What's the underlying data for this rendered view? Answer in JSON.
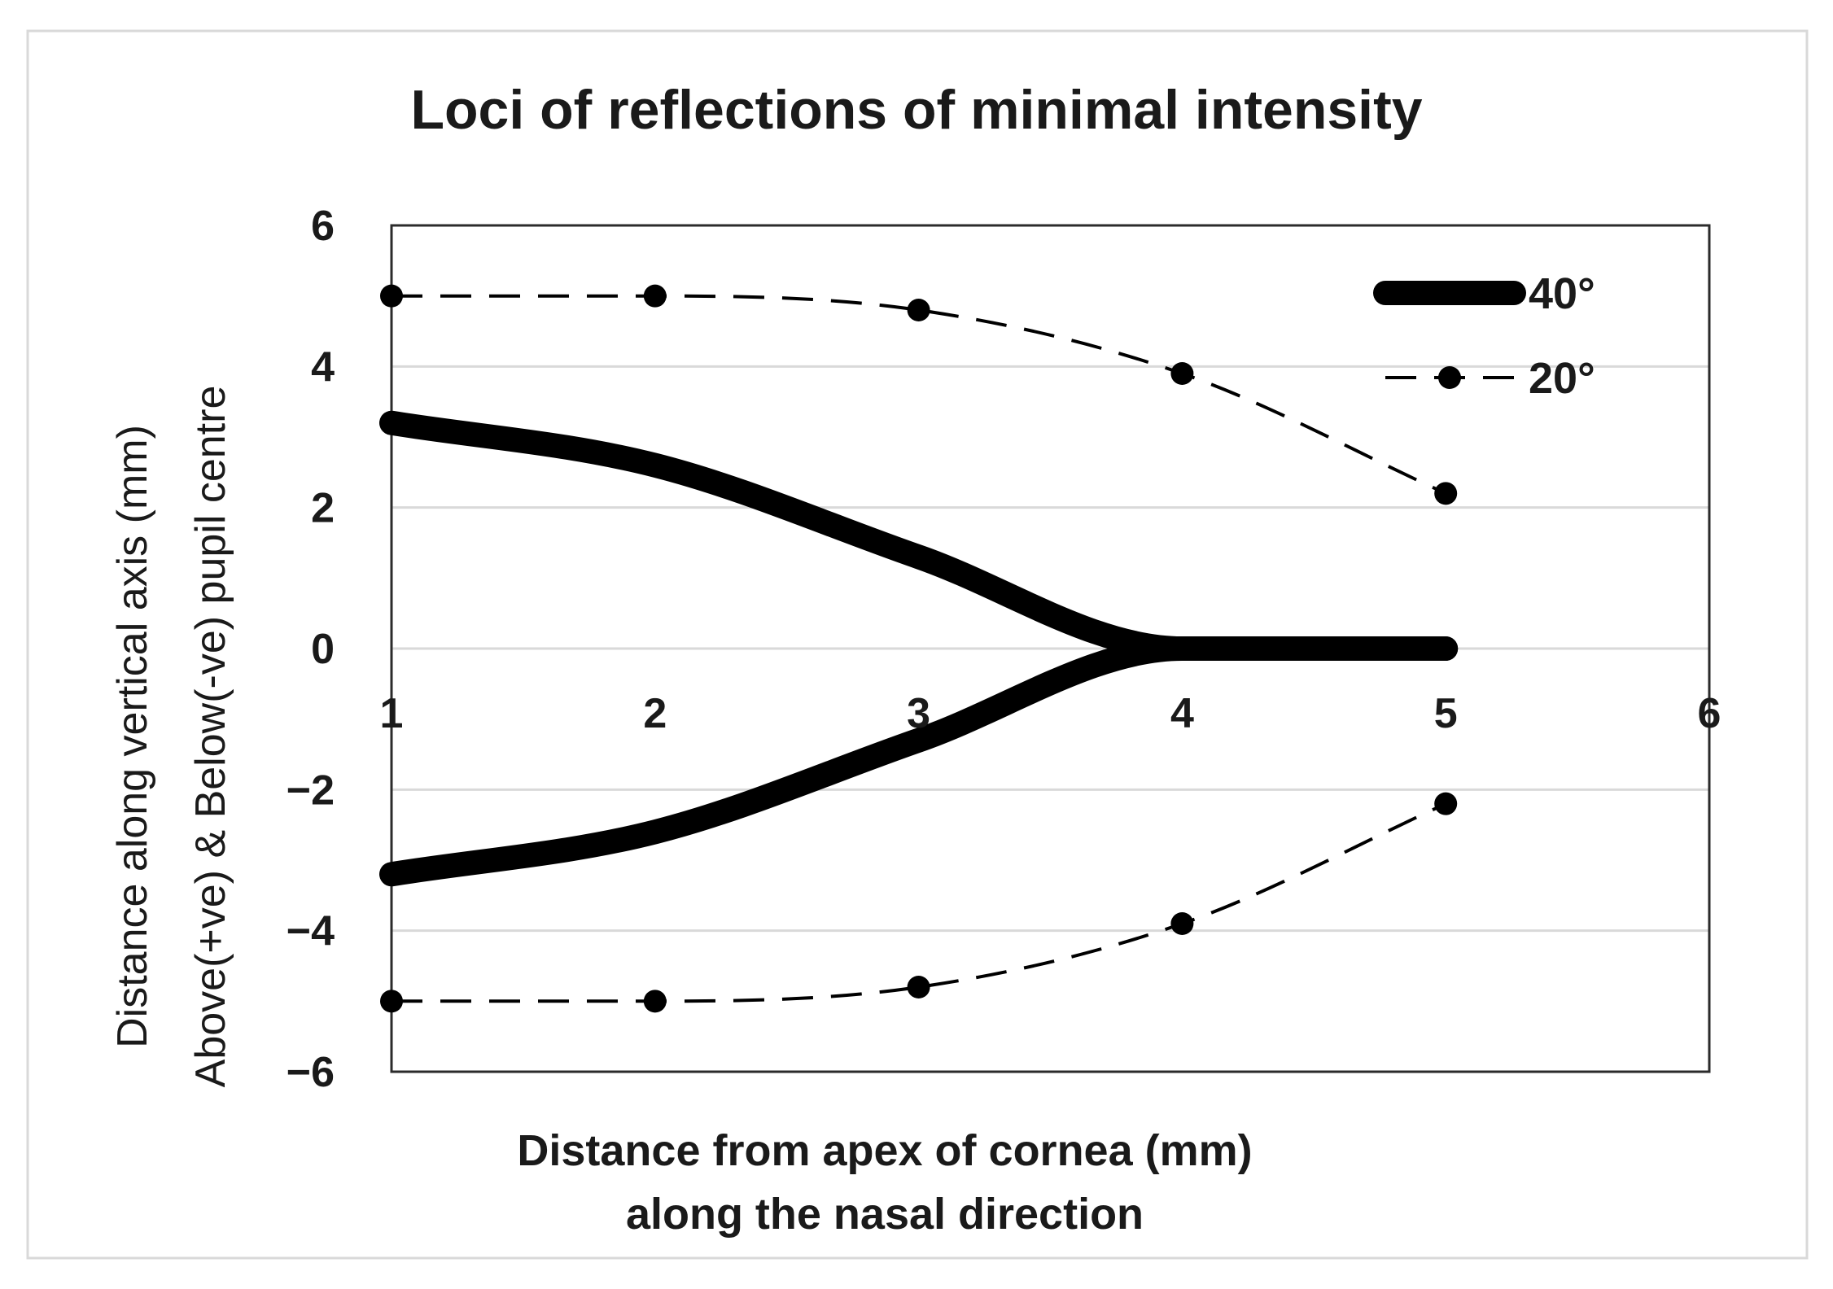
{
  "chart_data": {
    "type": "line",
    "title": "Loci of reflections of minimal intensity",
    "xlabel": [
      "Distance from apex of cornea (mm)",
      "along the nasal direction"
    ],
    "ylabel": [
      "Distance along vertical axis (mm)",
      "Above(+ve) & Below(-ve) pupil centre"
    ],
    "xlim": [
      1,
      6
    ],
    "ylim": [
      -6,
      6
    ],
    "x_ticks": [
      1,
      2,
      3,
      4,
      5,
      6
    ],
    "x_tick_labels": [
      "1",
      "2",
      "3",
      "4",
      "5",
      "6"
    ],
    "y_ticks": [
      6,
      4,
      2,
      0,
      -2,
      -4,
      -6
    ],
    "y_tick_labels": [
      "6",
      "4",
      "2",
      "0",
      "−2",
      "−4",
      "−6"
    ],
    "grid": "horizontal",
    "legend_position": "top-right",
    "series": [
      {
        "name": "40°",
        "style": "thick-solid",
        "color": "#000000",
        "branches": [
          {
            "x": [
              1,
              2,
              3,
              4,
              4.4,
              5
            ],
            "y": [
              3.2,
              2.6,
              1.3,
              0.0,
              0.0,
              0.0
            ]
          },
          {
            "x": [
              1,
              2,
              3,
              4,
              4.4,
              5
            ],
            "y": [
              -3.2,
              -2.6,
              -1.3,
              0.0,
              0.0,
              0.0
            ]
          }
        ]
      },
      {
        "name": "20°",
        "style": "dashed-markers",
        "color": "#000000",
        "branches": [
          {
            "x": [
              1,
              2,
              3,
              4,
              5
            ],
            "y": [
              5.0,
              5.0,
              4.8,
              3.9,
              2.2
            ]
          },
          {
            "x": [
              1,
              2,
              3,
              4,
              5
            ],
            "y": [
              -5.0,
              -5.0,
              -4.8,
              -3.9,
              -2.2
            ]
          }
        ]
      }
    ]
  }
}
